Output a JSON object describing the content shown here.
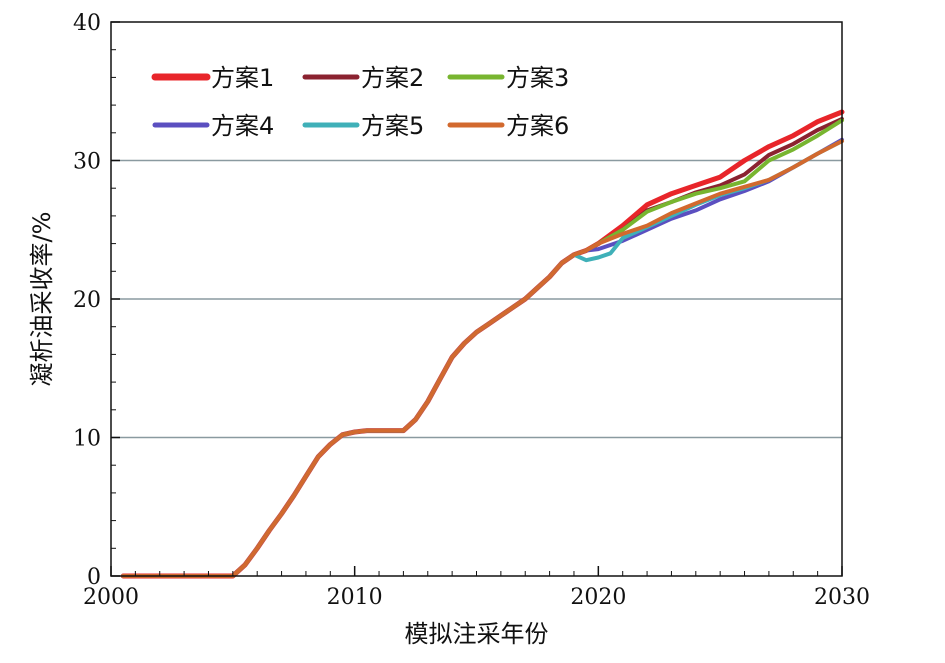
{
  "chart_data": {
    "type": "line",
    "title": "",
    "xlabel": "模拟注采年份",
    "ylabel": "凝析油采收率/%",
    "xlim": [
      2000,
      2030
    ],
    "ylim": [
      0,
      40
    ],
    "x_ticks": [
      "2000",
      "2010",
      "2020",
      "2030"
    ],
    "y_ticks": [
      "0",
      "10",
      "20",
      "30",
      "40"
    ],
    "grid": "horizontal",
    "legend_position": "top-left",
    "shared_history": {
      "x": [
        2000.5,
        2005,
        2005.5,
        2006,
        2006.5,
        2007,
        2007.5,
        2008,
        2008.5,
        2009,
        2009.5,
        2010,
        2010.5,
        2011,
        2011.5,
        2012,
        2012.5,
        2013,
        2013.5,
        2014,
        2014.5,
        2015,
        2015.5,
        2016,
        2016.5,
        2017,
        2017.5,
        2018,
        2018.5,
        2019,
        2019.5,
        2020
      ],
      "y": [
        0,
        0,
        0.8,
        2.0,
        3.3,
        4.5,
        5.8,
        7.2,
        8.6,
        9.5,
        10.2,
        10.4,
        10.5,
        10.5,
        10.5,
        10.5,
        11.3,
        12.6,
        14.2,
        15.8,
        16.8,
        17.6,
        18.2,
        18.8,
        19.4,
        20.0,
        20.8,
        21.6,
        22.6,
        23.2,
        23.5,
        24.0
      ]
    },
    "series": [
      {
        "name": "方案1",
        "color": "#e8252a",
        "x": [
          2020,
          2021,
          2022,
          2023,
          2024,
          2025,
          2026,
          2027,
          2028,
          2029,
          2030
        ],
        "y": [
          24.0,
          25.3,
          26.8,
          27.6,
          28.2,
          28.8,
          30.0,
          31.0,
          31.8,
          32.8,
          33.5
        ]
      },
      {
        "name": "方案2",
        "color": "#8b2230",
        "x": [
          2020,
          2021,
          2022,
          2023,
          2024,
          2025,
          2026,
          2027,
          2028,
          2029,
          2030
        ],
        "y": [
          24.0,
          25.0,
          26.4,
          27.0,
          27.7,
          28.2,
          29.0,
          30.4,
          31.2,
          32.2,
          33.0
        ]
      },
      {
        "name": "方案3",
        "color": "#78b530",
        "x": [
          2020,
          2021,
          2022,
          2023,
          2024,
          2025,
          2026,
          2027,
          2028,
          2029,
          2030
        ],
        "y": [
          24.0,
          25.0,
          26.3,
          27.0,
          27.6,
          28.0,
          28.5,
          30.0,
          30.8,
          31.8,
          32.9
        ]
      },
      {
        "name": "方案4",
        "color": "#5b4fc0",
        "x": [
          2020,
          2021,
          2022,
          2023,
          2024,
          2025,
          2026,
          2027,
          2028,
          2029,
          2030
        ],
        "y": [
          23.6,
          24.2,
          25.0,
          25.8,
          26.4,
          27.2,
          27.8,
          28.5,
          29.5,
          30.5,
          31.5
        ]
      },
      {
        "name": "方案5",
        "color": "#3fb0b8",
        "x": [
          2019.5,
          2020,
          2020.5,
          2021,
          2022,
          2023,
          2024,
          2025,
          2026,
          2027,
          2028,
          2029,
          2030
        ],
        "y": [
          22.8,
          23.0,
          23.3,
          24.4,
          25.2,
          26.0,
          26.8,
          27.5,
          28.0,
          28.6,
          29.5,
          30.5,
          31.4
        ]
      },
      {
        "name": "方案6",
        "color": "#d2692e",
        "x": [
          2020,
          2021,
          2022,
          2023,
          2024,
          2025,
          2026,
          2027,
          2028,
          2029,
          2030
        ],
        "y": [
          24.0,
          24.7,
          25.3,
          26.2,
          26.9,
          27.6,
          28.1,
          28.6,
          29.5,
          30.5,
          31.4
        ]
      }
    ]
  }
}
